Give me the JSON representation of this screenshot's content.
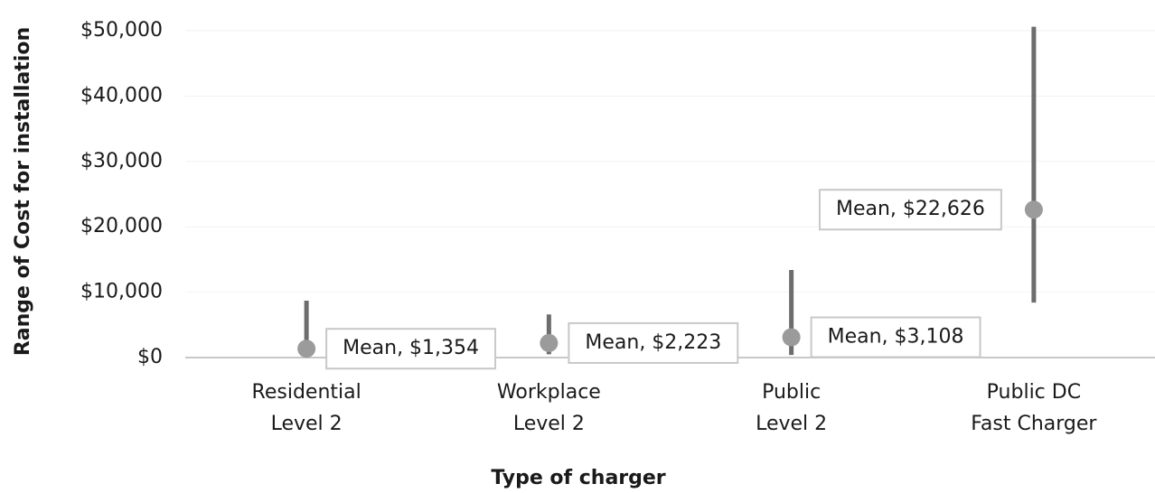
{
  "chart_data": {
    "type": "range-dot",
    "x_label": "Type of charger",
    "y_label": "Range of Cost for installation",
    "categories": [
      [
        "Residential",
        "Level 2"
      ],
      [
        "Workplace",
        "Level 2"
      ],
      [
        "Public",
        "Level 2"
      ],
      [
        "Public DC",
        "Fast Charger"
      ]
    ],
    "values": [
      1354,
      2223,
      3108,
      22626
    ],
    "value_labels": [
      "Mean, $1,354",
      "Mean, $2,223",
      "Mean, $3,108",
      "Mean, $22,626"
    ],
    "low": [
      0,
      500,
      400,
      8400
    ],
    "high": [
      8700,
      6600,
      13400,
      50600
    ],
    "point_color": "#9b9b9b",
    "range_color": "#6d6d6d",
    "ylim": [
      0,
      50000
    ],
    "yticks": [
      {
        "value": 0,
        "label": "$0"
      },
      {
        "value": 10000,
        "label": "$10,000"
      },
      {
        "value": 20000,
        "label": "$20,000"
      },
      {
        "value": 30000,
        "label": "$30,000"
      },
      {
        "value": 40000,
        "label": "$40,000"
      },
      {
        "value": 50000,
        "label": "$50,000"
      }
    ],
    "grid": true
  }
}
